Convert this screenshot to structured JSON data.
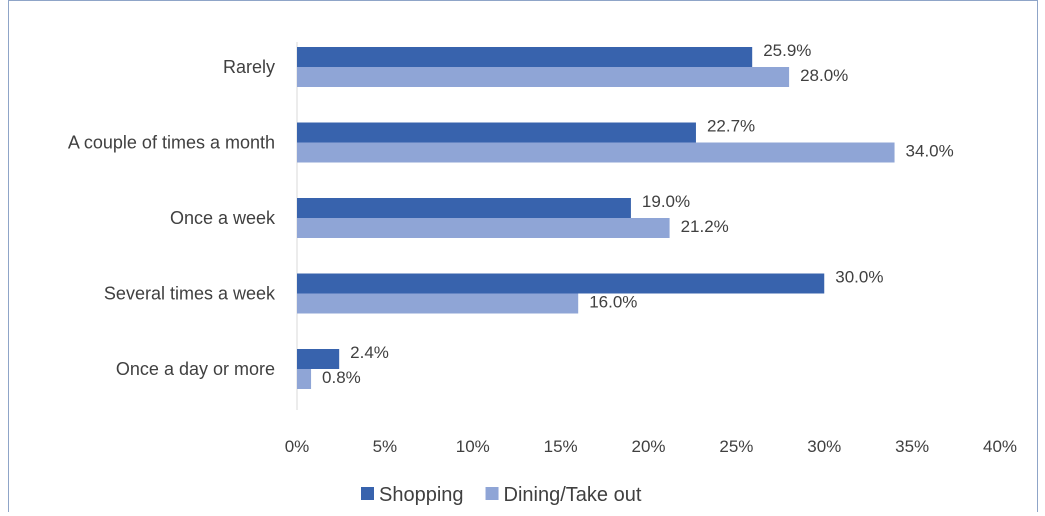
{
  "chart_data": {
    "type": "bar",
    "orientation": "horizontal",
    "categories": [
      "Rarely",
      "A couple of times a month",
      "Once a week",
      "Several times a week",
      "Once a day or more"
    ],
    "series": [
      {
        "name": "Shopping",
        "values": [
          25.9,
          22.7,
          19.0,
          30.0,
          2.4
        ],
        "labels": [
          "25.9%",
          "22.7%",
          "19.0%",
          "30.0%",
          "2.4%"
        ],
        "color": "#3863ad"
      },
      {
        "name": "Dining/Take out",
        "values": [
          28.0,
          34.0,
          21.2,
          16.0,
          0.8
        ],
        "labels": [
          "28.0%",
          "34.0%",
          "21.2%",
          "16.0%",
          "0.8%"
        ],
        "color": "#8fa5d6"
      }
    ],
    "xlim": [
      0,
      40
    ],
    "xticks": [
      "0%",
      "5%",
      "10%",
      "15%",
      "20%",
      "25%",
      "30%",
      "35%",
      "40%"
    ],
    "title": "",
    "xlabel": "",
    "ylabel": "",
    "grid": false,
    "legend_position": "bottom"
  }
}
